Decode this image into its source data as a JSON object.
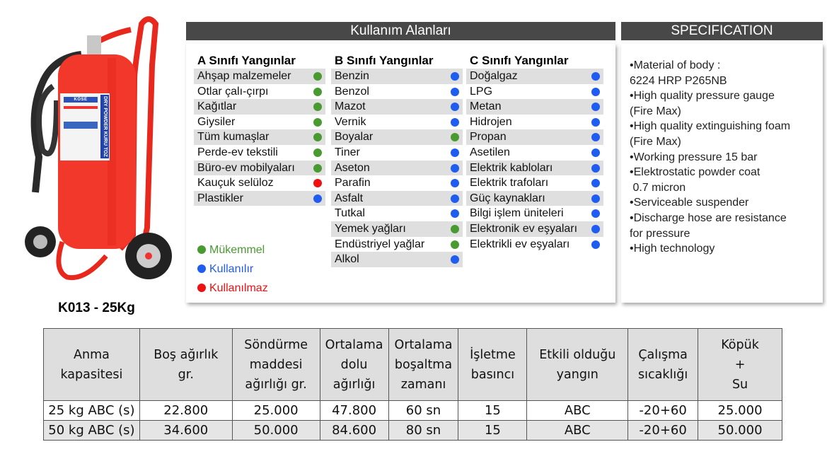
{
  "product": {
    "caption": "K013 - 25Kg",
    "label_brand": "KÖSE",
    "label_side": "DRY POWDER KURU TOZ"
  },
  "usage": {
    "title": "Kullanım Alanları",
    "columns": [
      {
        "title": "A Sınıfı Yangınlar",
        "items": [
          {
            "label": "Ahşap malzemeler",
            "status": "excellent"
          },
          {
            "label": "Otlar çalı-çırpı",
            "status": "excellent"
          },
          {
            "label": "Kağıtlar",
            "status": "excellent"
          },
          {
            "label": "Giysiler",
            "status": "excellent"
          },
          {
            "label": "Tüm kumaşlar",
            "status": "excellent"
          },
          {
            "label": "Perde-ev tekstili",
            "status": "excellent"
          },
          {
            "label": "Büro-ev mobilyaları",
            "status": "excellent"
          },
          {
            "label": "Kauçuk selüloz",
            "status": "unusable"
          },
          {
            "label": "Plastikler",
            "status": "usable"
          }
        ]
      },
      {
        "title": "B Sınıfı Yangınlar",
        "items": [
          {
            "label": "Benzin",
            "status": "usable"
          },
          {
            "label": "Benzol",
            "status": "usable"
          },
          {
            "label": "Mazot",
            "status": "usable"
          },
          {
            "label": "Vernik",
            "status": "usable"
          },
          {
            "label": "Boyalar",
            "status": "excellent"
          },
          {
            "label": "Tiner",
            "status": "usable"
          },
          {
            "label": "Aseton",
            "status": "usable"
          },
          {
            "label": "Parafin",
            "status": "usable"
          },
          {
            "label": "Asfalt",
            "status": "usable"
          },
          {
            "label": "Tutkal",
            "status": "usable"
          },
          {
            "label": "Yemek yağları",
            "status": "excellent"
          },
          {
            "label": "Endüstriyel yağlar",
            "status": "excellent"
          },
          {
            "label": "Alkol",
            "status": "usable"
          }
        ]
      },
      {
        "title": "C Sınıfı Yangınlar",
        "items": [
          {
            "label": "Doğalgaz",
            "status": "usable"
          },
          {
            "label": "LPG",
            "status": "usable"
          },
          {
            "label": "Metan",
            "status": "usable"
          },
          {
            "label": "Hidrojen",
            "status": "usable"
          },
          {
            "label": "Propan",
            "status": "usable"
          },
          {
            "label": "Asetilen",
            "status": "usable"
          },
          {
            "label": "Elektrik kabloları",
            "status": "usable"
          },
          {
            "label": "Elektrik trafoları",
            "status": "usable"
          },
          {
            "label": "Güç kaynakları",
            "status": "usable"
          },
          {
            "label": "Bilgi işlem üniteleri",
            "status": "usable"
          },
          {
            "label": "Elektronik ev eşyaları",
            "status": "usable"
          },
          {
            "label": "Elektrikli ev eşyaları",
            "status": "usable"
          }
        ]
      }
    ],
    "legend": [
      {
        "key": "excellent",
        "label": "Mükemmel",
        "color": "#4a9a32"
      },
      {
        "key": "usable",
        "label": "Kullanılır",
        "color": "#1f5cf0"
      },
      {
        "key": "unusable",
        "label": "Kullanılmaz",
        "color": "#f01010"
      }
    ]
  },
  "specification": {
    "title": "SPECIFICATION",
    "lines": [
      "•Material of body :",
      "6224 HRP P265NB",
      "•High quality pressure gauge",
      "(Fire Max)",
      "•High quality extinguishing foam",
      "(Fire Max)",
      "•Working pressure 15 bar",
      "•Elektrostatic powder coat",
      " 0.7 micron",
      "•Serviceable suspender",
      "•Discharge hose are resistance",
      "for pressure",
      "•High technology"
    ]
  },
  "table": {
    "headers": [
      [
        "Anma",
        "kapasitesi"
      ],
      [
        "Boş ağırlık",
        "gr."
      ],
      [
        "Söndürme",
        "maddesi",
        "ağırlığı gr."
      ],
      [
        "Ortalama",
        "dolu",
        "ağırlığı"
      ],
      [
        "Ortalama",
        "boşaltma",
        "zamanı"
      ],
      [
        "İşletme",
        "basıncı"
      ],
      [
        "Etkili olduğu",
        "yangın"
      ],
      [
        "Çalışma",
        "sıcaklığı"
      ],
      [
        "Köpük",
        "+",
        "Su"
      ]
    ],
    "rows": [
      [
        "25 kg ABC (s)",
        "22.800",
        "25.000",
        "47.800",
        "60 sn",
        "15",
        "ABC",
        "-20+60",
        "25.000"
      ],
      [
        "50 kg ABC (s)",
        "34.600",
        "50.000",
        "84.600",
        "80 sn",
        "15",
        "ABC",
        "-20+60",
        "50.000"
      ]
    ]
  }
}
